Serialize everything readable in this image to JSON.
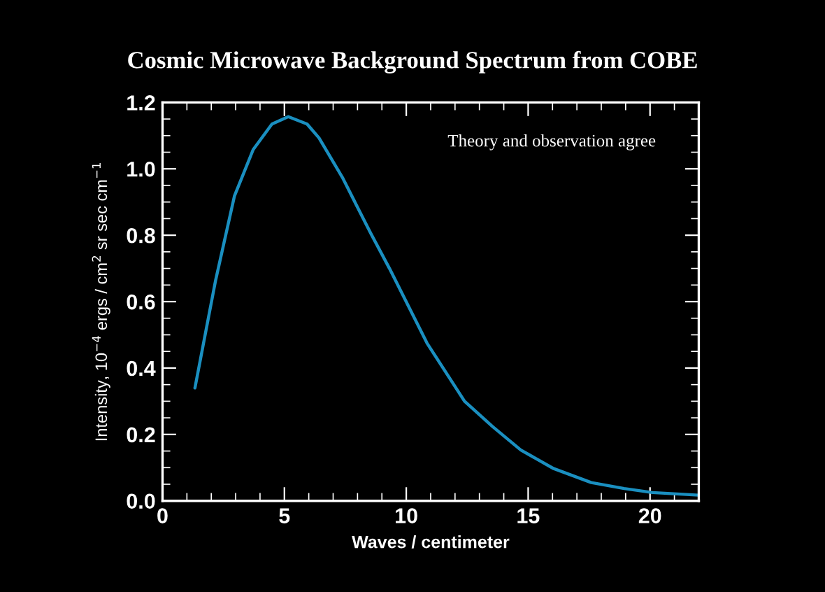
{
  "chart_data": {
    "type": "line",
    "title": "Cosmic Microwave Background Spectrum from COBE",
    "xlabel": "Waves / centimeter",
    "ylabel": "Intensity, 10$^{−4}$ ergs / cm$^{2}$ sr sec cm$^{−1}$",
    "annotations": [
      "Theory and observation agree"
    ],
    "series": [
      {
        "color": "#1a8fc0",
        "x": [
          1.33,
          2.18,
          2.95,
          3.72,
          4.49,
          5.16,
          5.93,
          6.42,
          7.38,
          8.54,
          9.31,
          10.85,
          12.39,
          13.55,
          14.7,
          16.05,
          17.59,
          18.94,
          20.1,
          22.0
        ],
        "values": [
          0.34,
          0.665,
          0.918,
          1.058,
          1.135,
          1.157,
          1.135,
          1.093,
          0.974,
          0.806,
          0.7,
          0.475,
          0.3,
          0.223,
          0.153,
          0.097,
          0.055,
          0.037,
          0.025,
          0.017
        ]
      }
    ],
    "xlim": [
      0,
      22
    ],
    "ylim": [
      0,
      1.2
    ],
    "xticks": [
      0,
      5,
      10,
      15,
      20,
      {
        "value": 1,
        "label": null
      },
      {
        "value": 2,
        "label": null
      },
      {
        "value": 3,
        "label": null
      },
      {
        "value": 4,
        "label": null
      },
      {
        "value": 6,
        "label": null
      },
      {
        "value": 7,
        "label": null
      },
      {
        "value": 8,
        "label": null
      },
      {
        "value": 9,
        "label": null
      },
      {
        "value": 11,
        "label": null
      },
      {
        "value": 12,
        "label": null
      },
      {
        "value": 13,
        "label": null
      },
      {
        "value": 14,
        "label": null
      },
      {
        "value": 16,
        "label": null
      },
      {
        "value": 17,
        "label": null
      },
      {
        "value": 18,
        "label": null
      },
      {
        "value": 19,
        "label": null
      },
      {
        "value": 21,
        "label": null
      }
    ],
    "yticks": [
      {
        "value": 0,
        "label": "0.0"
      },
      {
        "value": 0.2,
        "label": "0.2"
      },
      {
        "value": 0.4,
        "label": "0.4"
      },
      {
        "value": 0.6,
        "label": "0.6"
      },
      {
        "value": 0.8,
        "label": "0.8"
      },
      {
        "value": 1.0,
        "label": "1.0"
      },
      {
        "value": 1.2,
        "label": "1.2"
      },
      {
        "value": 0.05,
        "label": null
      },
      {
        "value": 0.1,
        "label": null
      },
      {
        "value": 0.15,
        "label": null
      },
      {
        "value": 0.25,
        "label": null
      },
      {
        "value": 0.3,
        "label": null
      },
      {
        "value": 0.35,
        "label": null
      },
      {
        "value": 0.45,
        "label": null
      },
      {
        "value": 0.5,
        "label": null
      },
      {
        "value": 0.55,
        "label": null
      },
      {
        "value": 0.65,
        "label": null
      },
      {
        "value": 0.7,
        "label": null
      },
      {
        "value": 0.75,
        "label": null
      },
      {
        "value": 0.85,
        "label": null
      },
      {
        "value": 0.9,
        "label": null
      },
      {
        "value": 0.95,
        "label": null
      },
      {
        "value": 1.05,
        "label": null
      },
      {
        "value": 1.1,
        "label": null
      },
      {
        "value": 1.15,
        "label": null
      }
    ],
    "grid": false,
    "legend": false,
    "marker": "none",
    "line_style": "solid"
  }
}
